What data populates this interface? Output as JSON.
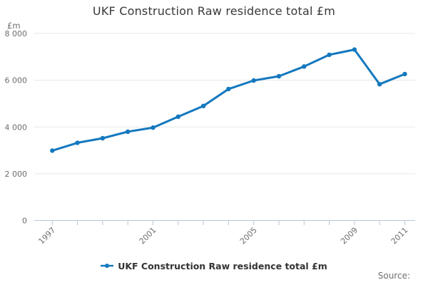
{
  "header": {
    "title": "UKF Construction Raw residence total £m"
  },
  "legend": {
    "label": "UKF Construction Raw residence total £m"
  },
  "source_label": "Source:",
  "colors": {
    "line": "#1478be",
    "grid": "#e7e7e7",
    "axis": "#b9c6d4",
    "muted_text": "#6e6e6e",
    "title_text": "#383838",
    "legend_text": "#333333"
  },
  "chart_data": {
    "type": "line",
    "title": "UKF Construction Raw residence total £m",
    "x": [
      1997,
      1998,
      1999,
      2000,
      2001,
      2002,
      2003,
      2004,
      2005,
      2006,
      2007,
      2008,
      2009,
      2010,
      2011
    ],
    "series": [
      {
        "name": "UKF Construction Raw residence total £m",
        "values": [
          2990,
          3325,
          3520,
          3800,
          3975,
          4440,
          4900,
          5625,
          5990,
          6170,
          6590,
          7090,
          7310,
          5830,
          6265
        ]
      }
    ],
    "ylabel": "£m",
    "ylim": [
      0,
      8000
    ],
    "ytick_values": [
      0,
      2000,
      4000,
      6000,
      8000
    ],
    "ytick_labels": [
      "0",
      "2 000",
      "4 000",
      "6 000",
      "8 000"
    ],
    "xtick_labels": [
      "1997",
      "2001",
      "2005",
      "2009",
      "2011"
    ],
    "grid": true,
    "legend_position": "bottom",
    "marker": "circle"
  }
}
